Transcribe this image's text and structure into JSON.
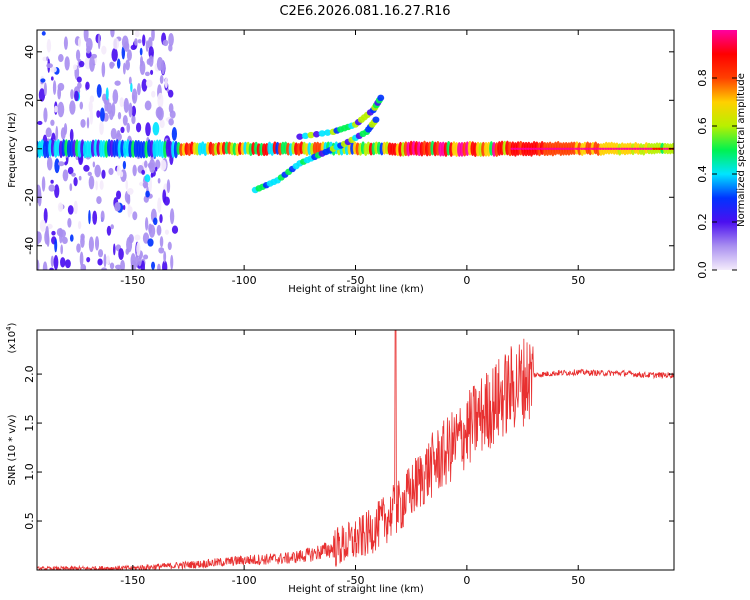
{
  "title": "C2E6.2026.081.16.27.R16",
  "chart_data": [
    {
      "type": "heatmap",
      "name": "spectrogram",
      "xlabel": "Height of straight line (km)",
      "ylabel": "Frequency (Hz)",
      "xlim": [
        -193,
        93
      ],
      "ylim": [
        -50,
        49
      ],
      "xticks": [
        -150,
        -100,
        -50,
        0,
        50
      ],
      "xtick_labels": [
        "-150",
        "-100",
        "-50",
        "0",
        "50"
      ],
      "yticks": [
        -40,
        -20,
        0,
        20,
        40
      ],
      "ytick_labels": [
        "-40",
        "-20",
        "0",
        "20",
        "40"
      ],
      "colorbar": {
        "label": "Normalized spectral amplitude",
        "range": [
          0,
          1
        ],
        "ticks": [
          0.0,
          0.2,
          0.4,
          0.6,
          0.8
        ],
        "tick_labels": [
          "0.0",
          "0.2",
          "0.4",
          "0.6",
          "0.8"
        ],
        "colors": [
          "#f4ecfb",
          "#a98ff0",
          "#4b0ff0",
          "#0033ff",
          "#00e5ff",
          "#00f250",
          "#b8f000",
          "#ffd000",
          "#ff4000",
          "#ff0000",
          "#ff00a0"
        ]
      },
      "features": {
        "main_band_freq_hz": 0,
        "upper_branch": {
          "x": [
            -75,
            -60,
            -50,
            -42,
            -38
          ],
          "freq": [
            5,
            7,
            10,
            16,
            22
          ]
        },
        "lower_branch": {
          "x": [
            -95,
            -85,
            -75,
            -65,
            -55,
            -45,
            -40
          ],
          "freq": [
            -17,
            -13,
            -6,
            -2,
            2,
            7,
            13
          ]
        }
      }
    },
    {
      "type": "line",
      "name": "snr",
      "xlabel": "Height of straight line (km)",
      "ylabel": "SNR (10 * v/v)",
      "multiplier_label": "(x10",
      "multiplier_exponent": "4",
      "multiplier_close": ")",
      "xlim": [
        -193,
        93
      ],
      "ylim": [
        0,
        2.45
      ],
      "xticks": [
        -150,
        -100,
        -50,
        0,
        50
      ],
      "xtick_labels": [
        "-150",
        "-100",
        "-50",
        "0",
        "50"
      ],
      "yticks": [
        0.5,
        1.0,
        1.5,
        2.0
      ],
      "ytick_labels": [
        "0.5",
        "1.0",
        "1.5",
        "2.0"
      ],
      "color": "#e83030",
      "series_envelope": {
        "x": [
          -193,
          -150,
          -120,
          -100,
          -80,
          -70,
          -60,
          -50,
          -45,
          -40,
          -35,
          -33,
          -30,
          -25,
          -20,
          -15,
          -10,
          -5,
          0,
          5,
          10,
          15,
          20,
          25,
          30,
          40,
          50,
          60,
          70,
          80,
          93
        ],
        "mean": [
          0.01,
          0.02,
          0.06,
          0.1,
          0.12,
          0.16,
          0.22,
          0.3,
          0.36,
          0.45,
          0.55,
          0.6,
          0.65,
          0.8,
          0.95,
          1.08,
          1.18,
          1.3,
          1.42,
          1.55,
          1.65,
          1.75,
          1.85,
          1.93,
          1.99,
          2.01,
          2.02,
          2.01,
          2.01,
          1.99,
          1.99
        ],
        "spike": {
          "x": -32,
          "y": 2.45
        }
      }
    }
  ]
}
